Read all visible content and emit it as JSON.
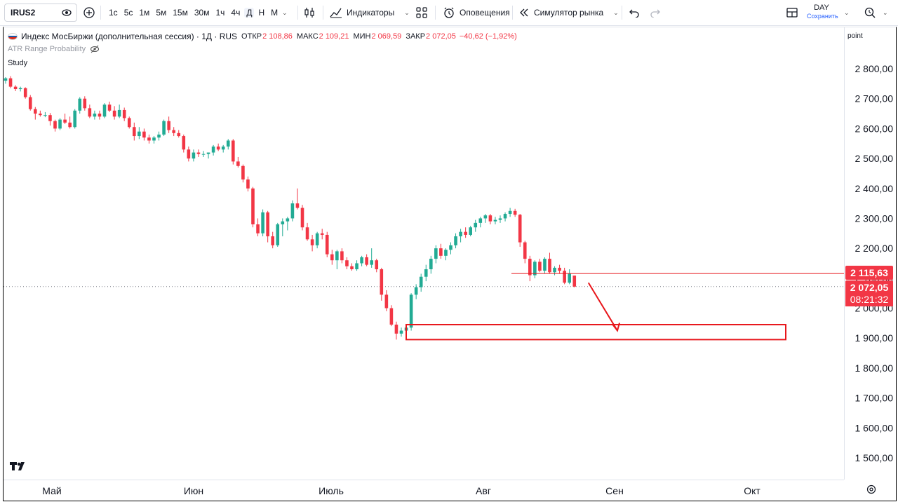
{
  "toolbar": {
    "symbol": "IRUS2",
    "timeframes": [
      "1с",
      "5с",
      "1м",
      "5м",
      "15м",
      "30м",
      "1ч",
      "4ч",
      "Д",
      "Н",
      "М"
    ],
    "active_timeframe": "Д",
    "indicators_label": "Индикаторы",
    "alerts_label": "Оповещения",
    "replay_label": "Симулятор рынка",
    "layout_name": "DAY",
    "layout_save": "Сохранить"
  },
  "legend": {
    "title": "Индекс МосБиржи (дополнительная сессия) · 1Д · RUS",
    "open_label": "ОТКР",
    "open": "2 108,86",
    "high_label": "МАКС",
    "high": "2 109,21",
    "low_label": "МИН",
    "low": "2 069,59",
    "close_label": "ЗАКР",
    "close": "2 072,05",
    "change": "−40,62 (−1,92%)"
  },
  "studies": [
    "ATR Range Probability",
    "Study"
  ],
  "price_axis": {
    "unit": "point",
    "ticks": [
      "2 800,00",
      "2 700,00",
      "2 600,00",
      "2 500,00",
      "2 400,00",
      "2 300,00",
      "2 200,00",
      "2 100,00",
      "2 000,00",
      "1 900,00",
      "1 800,00",
      "1 700,00",
      "1 600,00",
      "1 500,00"
    ],
    "level_tag": "2 115,63",
    "last_price_tag": "2 072,05",
    "countdown": "08:21:32"
  },
  "time_axis": {
    "labels": [
      "Май",
      "Июн",
      "Июль",
      "Авг",
      "Сен",
      "Окт"
    ]
  },
  "colors": {
    "up": "#22ab94",
    "down": "#f23645",
    "annotation": "#e8161b"
  },
  "chart_data": {
    "type": "candlestick",
    "series_name": "",
    "y_range": [
      1450,
      2870
    ],
    "support_zone": [
      1895,
      1945
    ],
    "horizontal_level": 2115.63,
    "last_close": 2072.05,
    "candles": [
      [
        2760,
        2772,
        2750,
        2768
      ],
      [
        2768,
        2775,
        2735,
        2740
      ],
      [
        2740,
        2745,
        2725,
        2732
      ],
      [
        2732,
        2740,
        2724,
        2735
      ],
      [
        2735,
        2738,
        2700,
        2705
      ],
      [
        2705,
        2712,
        2660,
        2665
      ],
      [
        2665,
        2672,
        2630,
        2650
      ],
      [
        2650,
        2660,
        2640,
        2645
      ],
      [
        2645,
        2655,
        2638,
        2645
      ],
      [
        2645,
        2652,
        2610,
        2625
      ],
      [
        2625,
        2630,
        2590,
        2600
      ],
      [
        2600,
        2635,
        2595,
        2630
      ],
      [
        2630,
        2650,
        2615,
        2620
      ],
      [
        2620,
        2640,
        2600,
        2605
      ],
      [
        2605,
        2665,
        2600,
        2660
      ],
      [
        2660,
        2705,
        2650,
        2700
      ],
      [
        2700,
        2708,
        2660,
        2668
      ],
      [
        2668,
        2680,
        2635,
        2640
      ],
      [
        2640,
        2660,
        2630,
        2650
      ],
      [
        2650,
        2660,
        2630,
        2640
      ],
      [
        2640,
        2685,
        2635,
        2680
      ],
      [
        2680,
        2690,
        2655,
        2660
      ],
      [
        2660,
        2675,
        2630,
        2640
      ],
      [
        2640,
        2680,
        2635,
        2662
      ],
      [
        2662,
        2670,
        2625,
        2635
      ],
      [
        2635,
        2640,
        2600,
        2605
      ],
      [
        2605,
        2620,
        2560,
        2575
      ],
      [
        2575,
        2605,
        2565,
        2590
      ],
      [
        2590,
        2600,
        2560,
        2570
      ],
      [
        2570,
        2580,
        2550,
        2560
      ],
      [
        2560,
        2575,
        2550,
        2570
      ],
      [
        2570,
        2590,
        2560,
        2580
      ],
      [
        2580,
        2630,
        2575,
        2625
      ],
      [
        2625,
        2640,
        2585,
        2595
      ],
      [
        2595,
        2605,
        2575,
        2585
      ],
      [
        2585,
        2595,
        2570,
        2575
      ],
      [
        2575,
        2580,
        2520,
        2530
      ],
      [
        2530,
        2540,
        2490,
        2500
      ],
      [
        2500,
        2530,
        2490,
        2520
      ],
      [
        2520,
        2530,
        2505,
        2515
      ],
      [
        2515,
        2525,
        2505,
        2515
      ],
      [
        2515,
        2520,
        2500,
        2520
      ],
      [
        2520,
        2545,
        2510,
        2540
      ],
      [
        2540,
        2550,
        2525,
        2530
      ],
      [
        2530,
        2545,
        2520,
        2540
      ],
      [
        2540,
        2565,
        2530,
        2560
      ],
      [
        2560,
        2565,
        2480,
        2490
      ],
      [
        2490,
        2505,
        2470,
        2475
      ],
      [
        2475,
        2480,
        2420,
        2430
      ],
      [
        2430,
        2440,
        2390,
        2400
      ],
      [
        2400,
        2405,
        2270,
        2280
      ],
      [
        2280,
        2300,
        2240,
        2250
      ],
      [
        2250,
        2330,
        2240,
        2320
      ],
      [
        2320,
        2325,
        2220,
        2240
      ],
      [
        2240,
        2255,
        2200,
        2210
      ],
      [
        2210,
        2285,
        2205,
        2280
      ],
      [
        2280,
        2300,
        2240,
        2290
      ],
      [
        2290,
        2305,
        2260,
        2300
      ],
      [
        2300,
        2360,
        2290,
        2350
      ],
      [
        2350,
        2400,
        2330,
        2335
      ],
      [
        2335,
        2345,
        2260,
        2270
      ],
      [
        2270,
        2285,
        2225,
        2230
      ],
      [
        2230,
        2245,
        2190,
        2210
      ],
      [
        2210,
        2255,
        2200,
        2250
      ],
      [
        2250,
        2265,
        2230,
        2245
      ],
      [
        2245,
        2255,
        2170,
        2180
      ],
      [
        2180,
        2195,
        2145,
        2160
      ],
      [
        2160,
        2195,
        2130,
        2190
      ],
      [
        2190,
        2200,
        2150,
        2160
      ],
      [
        2160,
        2170,
        2130,
        2140
      ],
      [
        2140,
        2150,
        2125,
        2130
      ],
      [
        2130,
        2160,
        2125,
        2150
      ],
      [
        2150,
        2175,
        2140,
        2170
      ],
      [
        2170,
        2180,
        2140,
        2145
      ],
      [
        2145,
        2200,
        2135,
        2160
      ],
      [
        2160,
        2165,
        2120,
        2130
      ],
      [
        2130,
        2135,
        2025,
        2045
      ],
      [
        2045,
        2060,
        1990,
        2000
      ],
      [
        2000,
        2010,
        1940,
        1945
      ],
      [
        1945,
        1955,
        1895,
        1915
      ],
      [
        1915,
        1935,
        1905,
        1925
      ],
      [
        1925,
        1945,
        1910,
        1935
      ],
      [
        1935,
        2050,
        1925,
        2045
      ],
      [
        2045,
        2080,
        2030,
        2070
      ],
      [
        2070,
        2115,
        2055,
        2105
      ],
      [
        2105,
        2145,
        2090,
        2130
      ],
      [
        2130,
        2175,
        2115,
        2165
      ],
      [
        2165,
        2210,
        2150,
        2200
      ],
      [
        2200,
        2215,
        2165,
        2175
      ],
      [
        2175,
        2200,
        2160,
        2195
      ],
      [
        2195,
        2220,
        2180,
        2210
      ],
      [
        2210,
        2250,
        2200,
        2240
      ],
      [
        2240,
        2265,
        2220,
        2255
      ],
      [
        2255,
        2270,
        2235,
        2245
      ],
      [
        2245,
        2275,
        2240,
        2270
      ],
      [
        2270,
        2295,
        2255,
        2285
      ],
      [
        2285,
        2305,
        2270,
        2300
      ],
      [
        2300,
        2315,
        2285,
        2310
      ],
      [
        2310,
        2315,
        2280,
        2290
      ],
      [
        2290,
        2305,
        2280,
        2295
      ],
      [
        2295,
        2310,
        2285,
        2300
      ],
      [
        2300,
        2320,
        2290,
        2315
      ],
      [
        2315,
        2335,
        2305,
        2325
      ],
      [
        2325,
        2332,
        2305,
        2312
      ],
      [
        2312,
        2315,
        2205,
        2220
      ],
      [
        2220,
        2225,
        2150,
        2165
      ],
      [
        2165,
        2175,
        2090,
        2110
      ],
      [
        2110,
        2160,
        2100,
        2155
      ],
      [
        2155,
        2165,
        2120,
        2125
      ],
      [
        2125,
        2170,
        2115,
        2165
      ],
      [
        2165,
        2185,
        2115,
        2120
      ],
      [
        2120,
        2140,
        2110,
        2135
      ],
      [
        2135,
        2145,
        2115,
        2125
      ],
      [
        2125,
        2135,
        2080,
        2085
      ],
      [
        2085,
        2130,
        2080,
        2115
      ],
      [
        2108.86,
        2109.21,
        2069.59,
        2072.05
      ]
    ]
  }
}
